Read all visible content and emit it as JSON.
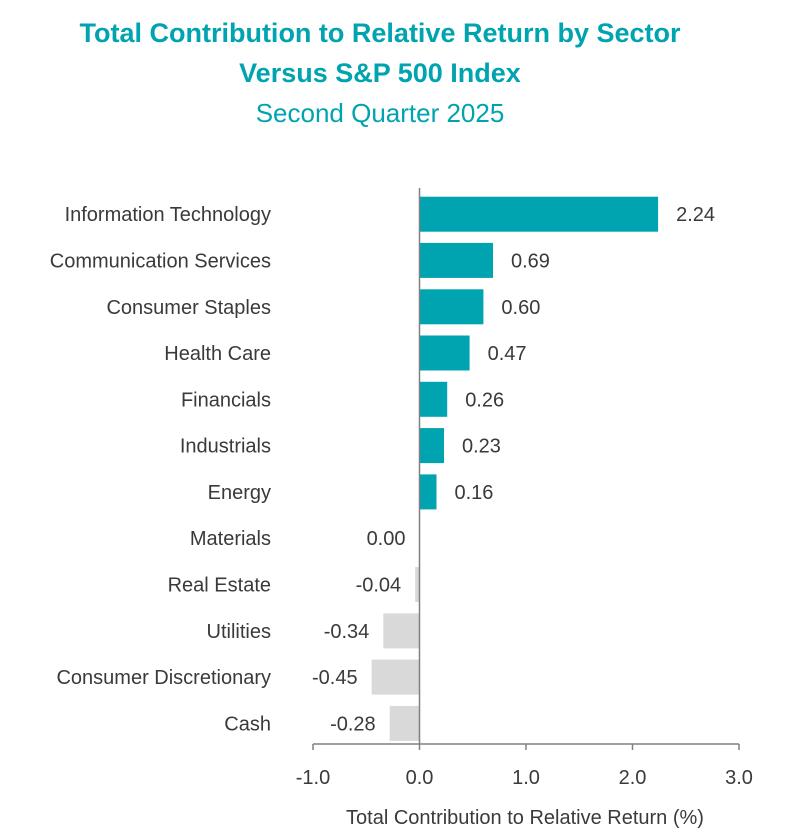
{
  "colors": {
    "title": "#00a3b0",
    "positive": "#00a3b0",
    "negative": "#d9d9d9",
    "axis": "#808080",
    "text": "#3a3a3a"
  },
  "chart_data": {
    "type": "bar",
    "orientation": "horizontal",
    "title_line1": "Total Contribution to Relative Return by Sector",
    "title_line2": "Versus S&P 500 Index",
    "subtitle": "Second Quarter 2025",
    "xlabel": "Total Contribution to Relative Return (%)",
    "ylabel": "",
    "xlim": [
      -1.0,
      3.0
    ],
    "xticks": [
      -1.0,
      0.0,
      1.0,
      2.0,
      3.0
    ],
    "xtick_labels": [
      "-1.0",
      "0.0",
      "1.0",
      "2.0",
      "3.0"
    ],
    "grid": false,
    "legend": "none",
    "categories": [
      "Information Technology",
      "Communication Services",
      "Consumer Staples",
      "Health Care",
      "Financials",
      "Industrials",
      "Energy",
      "Materials",
      "Real Estate",
      "Utilities",
      "Consumer Discretionary",
      "Cash"
    ],
    "values": [
      2.24,
      0.69,
      0.6,
      0.47,
      0.26,
      0.23,
      0.16,
      0.0,
      -0.04,
      -0.34,
      -0.45,
      -0.28
    ],
    "value_labels": [
      "2.24",
      "0.69",
      "0.60",
      "0.47",
      "0.26",
      "0.23",
      "0.16",
      "0.00",
      "-0.04",
      "-0.34",
      "-0.45",
      "-0.28"
    ]
  }
}
